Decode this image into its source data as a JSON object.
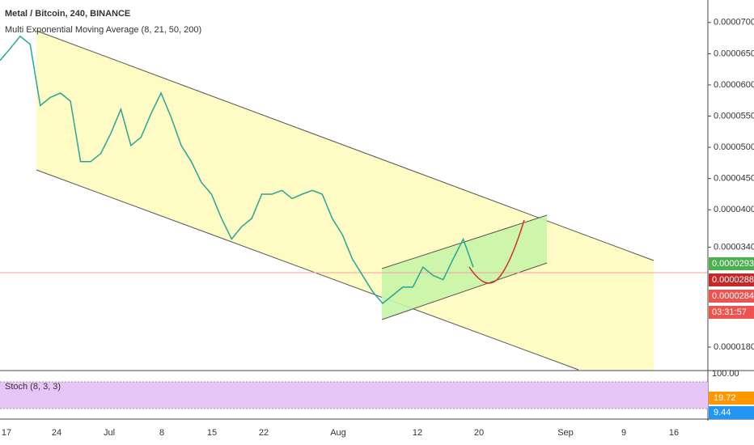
{
  "header": {
    "title": "Metal / Bitcoin, 240, BINANCE",
    "indicator": "Multi Exponential Moving Average (8, 21, 50, 200)"
  },
  "price_axis": {
    "ylim": [
      1.437e-05,
      7.36e-05
    ],
    "ticks": [
      {
        "value": 7e-05,
        "label": "0.0000700"
      },
      {
        "value": 6.5e-05,
        "label": "0.0000650"
      },
      {
        "value": 6e-05,
        "label": "0.0000600"
      },
      {
        "value": 5.5e-05,
        "label": "0.0000550"
      },
      {
        "value": 5e-05,
        "label": "0.0000500"
      },
      {
        "value": 4.5e-05,
        "label": "0.0000450"
      },
      {
        "value": 4e-05,
        "label": "0.0000400"
      },
      {
        "value": 3.4e-05,
        "label": "0.0000340"
      },
      {
        "value": 1.8e-05,
        "label": "0.0000180"
      }
    ]
  },
  "badges": [
    {
      "label": "0.0000293",
      "color": "#4caf50"
    },
    {
      "label": "0.0000288",
      "color": "#c62828"
    },
    {
      "label": "0.0000284",
      "color": "#ef5350"
    },
    {
      "label": "03:31:57",
      "color": "#ef5350"
    }
  ],
  "price_series": {
    "color": "#26a69a",
    "values": [
      6.39e-05,
      6.58e-05,
      6.78e-05,
      6.65e-05,
      5.67e-05,
      5.8e-05,
      5.87e-05,
      5.74e-05,
      4.77e-05,
      4.77e-05,
      4.9e-05,
      5.22e-05,
      5.61e-05,
      5.03e-05,
      5.16e-05,
      5.54e-05,
      5.87e-05,
      5.48e-05,
      5.03e-05,
      4.77e-05,
      4.44e-05,
      4.25e-05,
      3.86e-05,
      3.53e-05,
      3.73e-05,
      3.86e-05,
      4.25e-05,
      4.25e-05,
      4.31e-05,
      4.18e-05,
      4.25e-05,
      4.31e-05,
      4.25e-05,
      3.86e-05,
      3.6e-05,
      3.21e-05,
      2.95e-05,
      2.69e-05,
      2.5e-05,
      2.63e-05,
      2.76e-05,
      2.76e-05,
      3.08e-05,
      2.95e-05,
      2.88e-05,
      3.21e-05,
      3.53e-05,
      3.08e-05
    ]
  },
  "stoch": {
    "title": "Stoch (8, 3, 3)",
    "axis_label": "100.00",
    "badges": [
      {
        "label": "19.72",
        "color": "#ff9800"
      },
      {
        "label": "9.44",
        "color": "#2196f3"
      }
    ]
  },
  "time_axis": {
    "labels": [
      "17",
      "24",
      "Jul",
      "8",
      "15",
      "22",
      "Aug",
      "12",
      "20",
      "Sep",
      "9",
      "16"
    ]
  }
}
